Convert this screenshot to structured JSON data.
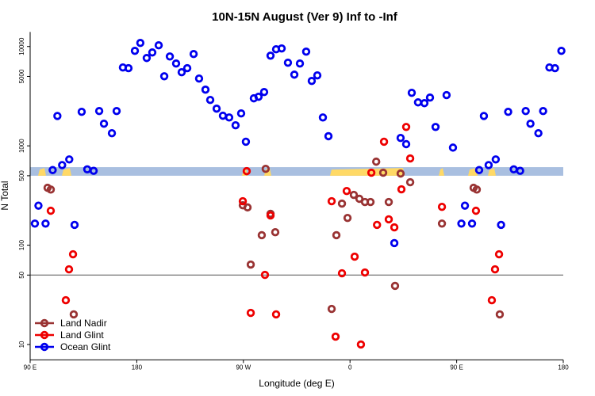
{
  "chart_data": {
    "type": "scatter",
    "title": "10N-15N August (Ver 9)   Inf to -Inf",
    "xlabel": "Longitude (deg E)",
    "ylabel": "N Total",
    "xlim": [
      90,
      540
    ],
    "xticks": [
      {
        "value": 90,
        "label": "90 E"
      },
      {
        "value": 180,
        "label": "180"
      },
      {
        "value": 270,
        "label": "90 W"
      },
      {
        "value": 360,
        "label": "0"
      },
      {
        "value": 450,
        "label": "90 E"
      },
      {
        "value": 540,
        "label": "180"
      }
    ],
    "ylim": [
      7,
      14000
    ],
    "log_y": true,
    "yticks": [
      10,
      50,
      100,
      500,
      1000,
      5000,
      10000
    ],
    "hline": 50,
    "band": [
      500,
      610
    ],
    "band_color": "#a9bfe0",
    "legend": "lower left",
    "series": [
      {
        "name": "Land Nadir",
        "color": "#993333",
        "x": [
          104.7,
          107.4,
          126.8,
          269.5,
          273.5,
          276.2,
          285.5,
          288.8,
          292.9,
          296.9,
          344.5,
          348.5,
          353.2,
          357.9,
          363.2,
          367.9,
          372.6,
          377.3,
          382.1,
          388,
          392.7,
          398,
          402.7,
          410.8,
          437.6,
          464.3,
          467,
          486.4
        ],
        "values": [
          378,
          363,
          20.1,
          252,
          240,
          63.8,
          126,
          587,
          207,
          135,
          22.8,
          126,
          262,
          188,
          321,
          293,
          272,
          272,
          693,
          536,
          272,
          38.9,
          526,
          430,
          165,
          378,
          363,
          20.1
        ]
      },
      {
        "name": "Land Glint",
        "color": "#ee0000",
        "x": [
          107.4,
          120.1,
          122.8,
          126.2,
          269.5,
          272.8,
          276.2,
          288.2,
          292.9,
          297.6,
          344.5,
          347.8,
          353.2,
          357.2,
          363.9,
          369.2,
          372.6,
          378,
          382.8,
          388.7,
          392.7,
          397.4,
          403.4,
          407.4,
          410.8,
          437.6,
          466.3,
          479.7,
          482.4,
          485.8
        ],
        "values": [
          222,
          27.9,
          57.1,
          81,
          277,
          556,
          20.8,
          50.2,
          199,
          20.1,
          277,
          12,
          52.1,
          351,
          76.6,
          10,
          53.1,
          536,
          160,
          1100,
          182,
          151,
          365,
          1550,
          746,
          243,
          222,
          27.9,
          57.1,
          81
        ]
      },
      {
        "name": "Ocean Glint",
        "color": "#0000ee",
        "x": [
          94,
          97,
          103,
          109,
          113,
          117,
          123,
          127.5,
          133.5,
          138.2,
          143.6,
          148.3,
          152.3,
          159,
          163,
          168.3,
          173,
          178.4,
          183,
          188.4,
          193.1,
          198.5,
          203.2,
          207.9,
          213.2,
          217.9,
          222.6,
          228,
          232.6,
          238,
          242,
          247.4,
          252.7,
          258,
          263.4,
          268.1,
          272.1,
          278.8,
          282.8,
          287.5,
          292.9,
          297.6,
          302.3,
          307.6,
          313,
          317.7,
          323,
          327.7,
          332.4,
          337.1,
          341.8,
          397.4,
          402.7,
          407.4,
          412.1,
          417.4,
          422.8,
          427.5,
          432.2,
          441.5,
          446.9,
          454,
          457,
          463,
          469,
          473,
          477,
          483,
          487.5,
          493.5,
          498.2,
          503.6,
          508.3,
          512.3,
          519,
          523,
          528.3,
          533,
          538.4
        ],
        "values": [
          165,
          250,
          165,
          570,
          2000,
          640,
          730,
          160,
          2200,
          580,
          560,
          2240,
          1670,
          1340,
          2240,
          6150,
          6050,
          9040,
          10860,
          7660,
          8710,
          10280,
          5020,
          7940,
          6740,
          5510,
          6050,
          8400,
          4760,
          3680,
          2900,
          2370,
          2010,
          1930,
          1610,
          2120,
          1100,
          3010,
          3120,
          3480,
          8090,
          9380,
          9560,
          6870,
          5210,
          6740,
          8880,
          4500,
          5120,
          1930,
          1250,
          105,
          1200,
          1040,
          3420,
          2740,
          2690,
          3060,
          1550,
          3240,
          960,
          165,
          250,
          165,
          570,
          2000,
          640,
          730,
          160,
          2200,
          580,
          560,
          2240,
          1670,
          1340,
          2240,
          6150,
          6050,
          9040
        ]
      }
    ]
  }
}
